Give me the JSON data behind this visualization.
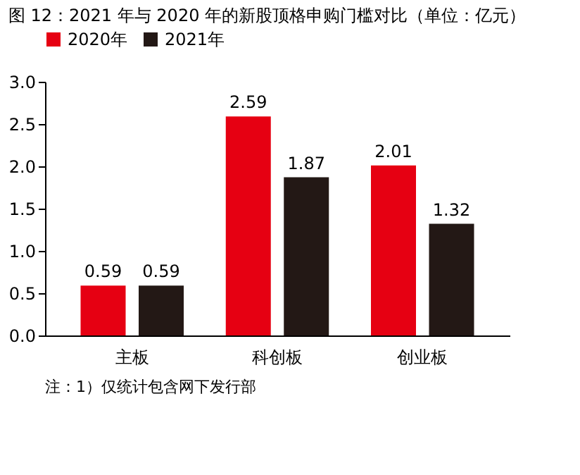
{
  "chart_data": {
    "type": "bar",
    "title": "图 12：2021 年与 2020 年的新股顶格申购门槛对比（单位：亿元）",
    "categories": [
      "主板",
      "科创板",
      "创业板"
    ],
    "series": [
      {
        "name": "2020年",
        "color": "#e60012",
        "values": [
          0.59,
          2.59,
          2.01
        ]
      },
      {
        "name": "2021年",
        "color": "#231815",
        "values": [
          0.59,
          1.87,
          1.32
        ]
      }
    ],
    "ylim": [
      0,
      3
    ],
    "yticks": [
      {
        "value": 0,
        "label": "0.0"
      },
      0.5,
      {
        "value": 1,
        "label": "1.0"
      },
      1.5,
      {
        "value": 2,
        "label": "2.0"
      },
      2.5,
      {
        "value": 3,
        "label": "3.0"
      }
    ],
    "grid": false,
    "legend": "top",
    "data_labels": true,
    "annotations": [
      "注：1）仅统计包含网下发行部"
    ]
  }
}
